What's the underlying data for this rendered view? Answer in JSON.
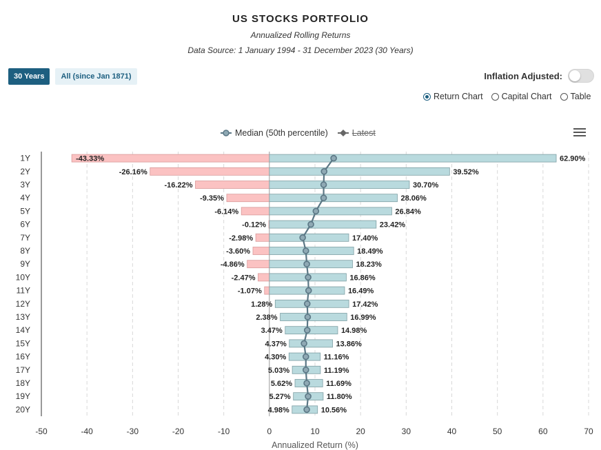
{
  "header": {
    "title": "US STOCKS PORTFOLIO",
    "subtitle": "Annualized Rolling Returns",
    "source": "Data Source: 1 January 1994 - 31 December 2023 (30 Years)"
  },
  "range_buttons": [
    "30 Years",
    "All (since Jan 1871)"
  ],
  "inflation_label": "Inflation Adjusted:",
  "inflation_on": false,
  "views": [
    {
      "label": "Return Chart",
      "selected": true
    },
    {
      "label": "Capital Chart",
      "selected": false
    },
    {
      "label": "Table",
      "selected": false
    }
  ],
  "legend": {
    "median": "Median (50th percentile)",
    "latest": "Latest"
  },
  "colors": {
    "positive": "#b9dade",
    "negative": "#fbc2c2",
    "median": "#5b7785",
    "accent": "#1d5f80"
  },
  "chart_data": {
    "type": "bar",
    "orientation": "horizontal-range",
    "categories": [
      "1Y",
      "2Y",
      "3Y",
      "4Y",
      "5Y",
      "6Y",
      "7Y",
      "8Y",
      "9Y",
      "10Y",
      "11Y",
      "12Y",
      "13Y",
      "14Y",
      "15Y",
      "16Y",
      "17Y",
      "18Y",
      "19Y",
      "20Y"
    ],
    "min": [
      -43.33,
      -26.16,
      -16.22,
      -9.35,
      -6.14,
      -0.12,
      -2.98,
      -3.6,
      -4.86,
      -2.47,
      -1.07,
      1.28,
      2.38,
      3.47,
      4.37,
      4.3,
      5.03,
      5.62,
      5.27,
      4.98
    ],
    "max": [
      62.9,
      39.52,
      30.7,
      28.06,
      26.84,
      23.42,
      17.4,
      18.49,
      18.23,
      16.86,
      16.49,
      17.42,
      16.99,
      14.98,
      13.86,
      11.16,
      11.19,
      11.69,
      11.8,
      10.56
    ],
    "min_labels": [
      "-43.33%",
      "-26.16%",
      "-16.22%",
      "-9.35%",
      "-6.14%",
      "-0.12%",
      "-2.98%",
      "-3.60%",
      "-4.86%",
      "-2.47%",
      "-1.07%",
      "1.28%",
      "2.38%",
      "3.47%",
      "4.37%",
      "4.30%",
      "5.03%",
      "5.62%",
      "5.27%",
      "4.98%"
    ],
    "max_labels": [
      "62.90%",
      "39.52%",
      "30.70%",
      "28.06%",
      "26.84%",
      "23.42%",
      "17.40%",
      "18.49%",
      "18.23%",
      "16.86%",
      "16.49%",
      "17.42%",
      "16.99%",
      "14.98%",
      "13.86%",
      "11.16%",
      "11.19%",
      "11.69%",
      "11.80%",
      "10.56%"
    ],
    "median": [
      14.1,
      12.0,
      11.9,
      11.9,
      10.2,
      9.1,
      7.3,
      8.0,
      8.2,
      8.5,
      8.6,
      8.3,
      8.4,
      8.3,
      7.6,
      8.0,
      8.0,
      8.2,
      8.5,
      8.2
    ],
    "xlabel": "Annualized Return (%)",
    "xlim": [
      -50,
      70
    ],
    "xticks": [
      -50,
      -40,
      -30,
      -20,
      -10,
      0,
      10,
      20,
      30,
      40,
      50,
      60,
      70
    ],
    "grid": true,
    "legend_position": "top-center"
  }
}
